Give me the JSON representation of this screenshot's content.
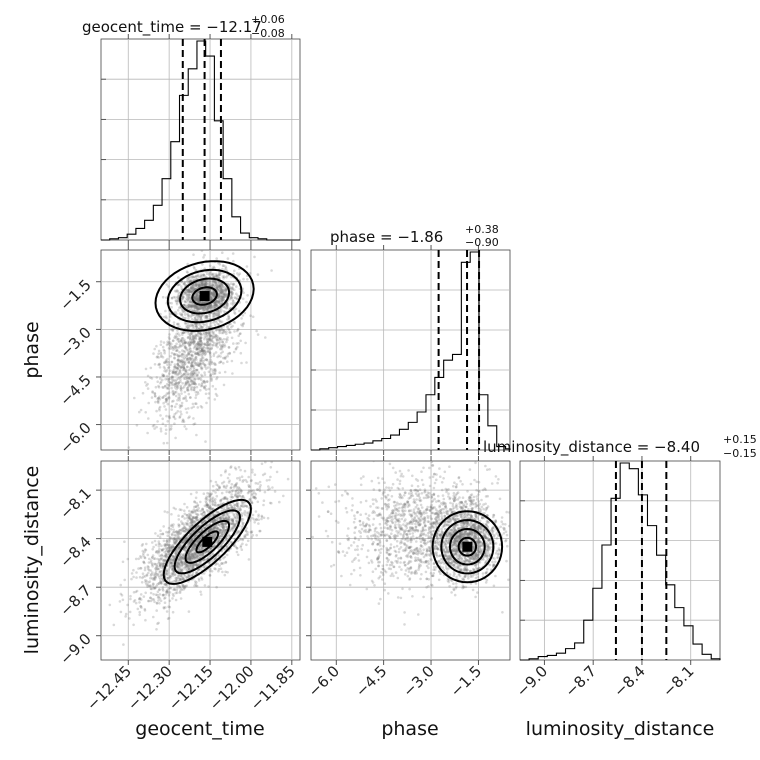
{
  "chart_data": {
    "type": "corner",
    "parameters": [
      {
        "name": "geocent_time",
        "label": "geocent_time",
        "title": "geocent_time = −12.17",
        "title_sup": "+0.06",
        "title_sub": "−0.08",
        "range": [
          -12.55,
          -11.82
        ],
        "ticks": [
          -12.45,
          -12.3,
          -12.15,
          -12.0,
          -11.85
        ],
        "tick_labels": [
          "−12.45",
          "−12.30",
          "−12.15",
          "−12.00",
          "−11.85"
        ],
        "quantiles": [
          -12.25,
          -12.17,
          -12.11
        ],
        "histogram": {
          "edges": [
            -12.55,
            -12.518,
            -12.486,
            -12.454,
            -12.422,
            -12.39,
            -12.358,
            -12.326,
            -12.294,
            -12.262,
            -12.23,
            -12.198,
            -12.166,
            -12.134,
            -12.102,
            -12.07,
            -12.038,
            -12.006,
            -11.974,
            -11.942,
            -11.91,
            -11.878,
            -11.846,
            -11.82
          ],
          "counts": [
            0,
            1,
            2,
            5,
            10,
            17,
            30,
            53,
            85,
            125,
            148,
            172,
            159,
            103,
            53,
            20,
            6,
            2,
            1,
            0,
            0,
            0,
            0
          ]
        }
      },
      {
        "name": "phase",
        "label": "phase",
        "title": "phase = −1.86",
        "title_sup": "+0.38",
        "title_sub": "−0.90",
        "range": [
          -6.8,
          -0.5
        ],
        "ticks": [
          -6.0,
          -4.5,
          -3.0,
          -1.5
        ],
        "tick_labels": [
          "−6.0",
          "−4.5",
          "−3.0",
          "−1.5"
        ],
        "quantiles": [
          -2.76,
          -1.86,
          -1.48
        ],
        "histogram": {
          "edges": [
            -6.8,
            -6.52,
            -6.24,
            -5.96,
            -5.68,
            -5.4,
            -5.12,
            -4.84,
            -4.56,
            -4.28,
            -4.0,
            -3.72,
            -3.44,
            -3.16,
            -2.88,
            -2.6,
            -2.32,
            -2.04,
            -1.76,
            -1.48,
            -1.2,
            -0.92,
            -0.64,
            -0.5
          ],
          "counts": [
            0,
            1,
            2,
            3,
            4,
            5,
            6,
            8,
            10,
            13,
            18,
            24,
            33,
            48,
            63,
            78,
            83,
            163,
            172,
            48,
            21,
            3,
            1
          ]
        }
      },
      {
        "name": "luminosity_distance",
        "label": "luminosity_distance",
        "title": "luminosity_distance = −8.40",
        "title_sup": "+0.15",
        "title_sub": "−0.15",
        "range": [
          -9.15,
          -7.92
        ],
        "ticks": [
          -9.0,
          -8.7,
          -8.4,
          -8.1
        ],
        "tick_labels": [
          "−9.0",
          "−8.7",
          "−8.4",
          "−8.1"
        ],
        "quantiles": [
          -8.56,
          -8.4,
          -8.25
        ],
        "histogram": {
          "edges": [
            -9.15,
            -9.094,
            -9.038,
            -8.982,
            -8.926,
            -8.87,
            -8.814,
            -8.758,
            -8.702,
            -8.646,
            -8.59,
            -8.534,
            -8.478,
            -8.422,
            -8.366,
            -8.31,
            -8.254,
            -8.198,
            -8.142,
            -8.086,
            -8.03,
            -7.974,
            -7.92
          ],
          "counts": [
            0,
            1,
            3,
            4,
            6,
            10,
            15,
            35,
            63,
            101,
            142,
            173,
            168,
            145,
            118,
            92,
            66,
            46,
            30,
            14,
            5,
            1
          ]
        }
      }
    ],
    "contour_levels": [
      0.5,
      1.0,
      1.5,
      2.0
    ],
    "grid": true,
    "point_color": "#777777",
    "contour_color": "#000000"
  }
}
